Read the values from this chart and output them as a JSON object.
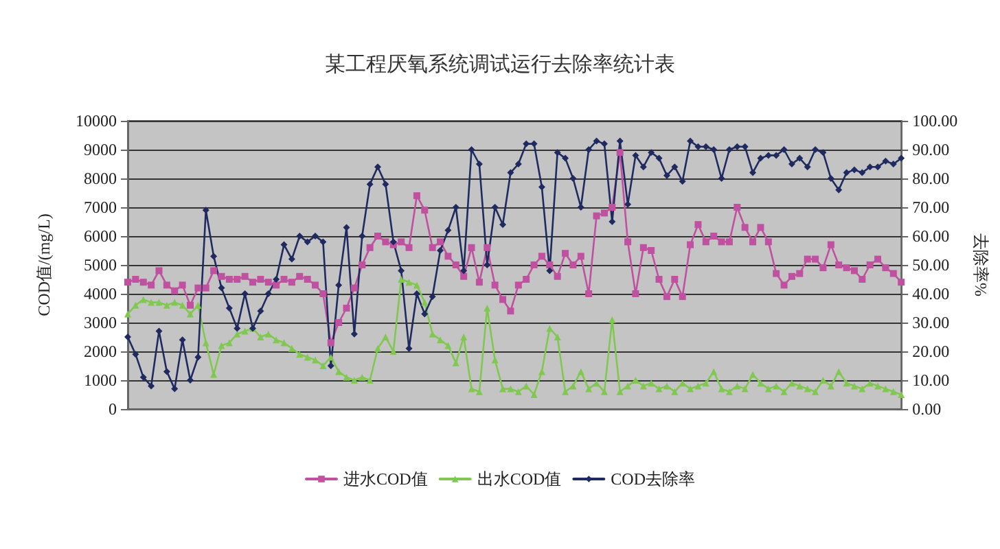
{
  "chart_data": {
    "type": "line",
    "title": "某工程厌氧系统调试运行去除率统计表",
    "ylabel": "COD值/(mg/L)",
    "y2label": "去除率%",
    "categories": [
      null,
      null,
      null,
      null,
      null,
      null,
      null,
      null,
      null,
      null,
      null,
      null,
      null,
      null,
      null,
      null,
      null,
      null,
      null,
      null,
      null,
      null,
      null,
      null,
      null,
      null,
      null,
      null,
      null,
      null,
      null,
      null,
      null,
      null,
      null,
      null,
      null,
      null,
      null,
      null,
      null,
      null,
      null,
      null,
      null,
      null,
      null,
      null,
      null,
      null,
      null,
      null,
      null,
      null,
      null,
      null,
      null,
      null,
      null,
      null,
      null,
      null,
      null,
      null,
      null,
      null,
      null,
      null,
      null,
      null,
      null,
      null,
      null,
      null,
      null,
      null,
      null,
      null,
      null,
      null,
      null,
      null,
      null,
      null,
      null,
      null,
      null,
      null,
      null,
      null,
      null,
      null,
      null,
      null,
      null,
      null,
      null,
      null,
      null,
      null
    ],
    "series": [
      {
        "name": "进水COD值",
        "color": "#c050a0",
        "marker": "square",
        "values": [
          4400,
          4500,
          4400,
          4300,
          4800,
          4300,
          4100,
          4300,
          3600,
          4200,
          4200,
          4800,
          4600,
          4500,
          4500,
          4600,
          4400,
          4500,
          4400,
          4300,
          4500,
          4400,
          4600,
          4500,
          4300,
          4000,
          2300,
          3000,
          3500,
          4200,
          5000,
          5600,
          6000,
          5800,
          5700,
          5800,
          5600,
          7400,
          6900,
          5600,
          5800,
          5300,
          5000,
          4600,
          5600,
          4400,
          5600,
          4300,
          3800,
          3400,
          4300,
          4500,
          5000,
          5300,
          5000,
          4600,
          5400,
          5000,
          5300,
          4000,
          6700,
          6800,
          7000,
          8900,
          5800,
          4000,
          5600,
          5500,
          4500,
          3900,
          4500,
          3900,
          5700,
          6400,
          5800,
          6000,
          5800,
          5800,
          7000,
          6300,
          5800,
          6300,
          5800,
          4700,
          4300,
          4600,
          4700,
          5200,
          5200,
          4900,
          5700,
          5000,
          4900,
          4800,
          4500,
          5000,
          5200,
          4900,
          4700,
          4400
        ]
      },
      {
        "name": "出水COD值",
        "color": "#80c850",
        "marker": "triangle",
        "values": [
          3300,
          3600,
          3800,
          3700,
          3700,
          3600,
          3700,
          3600,
          3300,
          3600,
          2300,
          1200,
          2200,
          2300,
          2600,
          2700,
          2800,
          2500,
          2600,
          2400,
          2300,
          2100,
          1900,
          1800,
          1700,
          1500,
          1800,
          1300,
          1100,
          1000,
          1100,
          1000,
          2100,
          2500,
          2000,
          4500,
          4400,
          4300,
          3700,
          2600,
          2400,
          2200,
          1600,
          2500,
          700,
          600,
          3500,
          1700,
          700,
          700,
          600,
          800,
          500,
          1300,
          2800,
          2500,
          600,
          800,
          1300,
          700,
          900,
          600,
          3100,
          600,
          800,
          1000,
          800,
          900,
          700,
          800,
          600,
          900,
          700,
          800,
          900,
          1300,
          700,
          600,
          800,
          700,
          1200,
          900,
          700,
          800,
          600,
          900,
          800,
          700,
          600,
          1000,
          800,
          1300,
          900,
          800,
          700,
          900,
          800,
          700,
          600,
          500
        ]
      },
      {
        "name": "COD去除率",
        "color": "#1f2a60",
        "marker": "diamond",
        "axis": "y2",
        "values": [
          25,
          19,
          11,
          8,
          27,
          13,
          7,
          24,
          10,
          18,
          69,
          53,
          42,
          35,
          28,
          40,
          28,
          34,
          40,
          45,
          57,
          52,
          60,
          58,
          60,
          58,
          15,
          43,
          63,
          26,
          60,
          78,
          84,
          78,
          58,
          48,
          21,
          40,
          33,
          39,
          55,
          62,
          70,
          48,
          90,
          85,
          50,
          70,
          64,
          82,
          85,
          92,
          92,
          77,
          48,
          89,
          87,
          80,
          70,
          90,
          93,
          92,
          65,
          93,
          71,
          88,
          84,
          89,
          87,
          81,
          84,
          79,
          93,
          91,
          91,
          90,
          80,
          90,
          91,
          91,
          82,
          87,
          88,
          88,
          90,
          85,
          87,
          84,
          90,
          89,
          80,
          76,
          82,
          83,
          82,
          84,
          84,
          86,
          85,
          87
        ]
      }
    ],
    "ylim": [
      0,
      10000
    ],
    "yticks": [
      0,
      1000,
      2000,
      3000,
      4000,
      5000,
      6000,
      7000,
      8000,
      9000,
      10000
    ],
    "y2lim": [
      0,
      100
    ],
    "y2ticks": [
      {
        "value": 0,
        "label": "0.00"
      },
      {
        "value": 10,
        "label": "10.00"
      },
      {
        "value": 20,
        "label": "20.00"
      },
      {
        "value": 30,
        "label": "30.00"
      },
      {
        "value": 40,
        "label": "40.00"
      },
      {
        "value": 50,
        "label": "50.00"
      },
      {
        "value": 60,
        "label": "60.00"
      },
      {
        "value": 70,
        "label": "70.00"
      },
      {
        "value": 80,
        "label": "80.00"
      },
      {
        "value": 90,
        "label": "90.00"
      },
      {
        "value": 100,
        "label": "100.00"
      }
    ],
    "grid": "y",
    "legend": "bottom",
    "tick_labels": "y"
  }
}
